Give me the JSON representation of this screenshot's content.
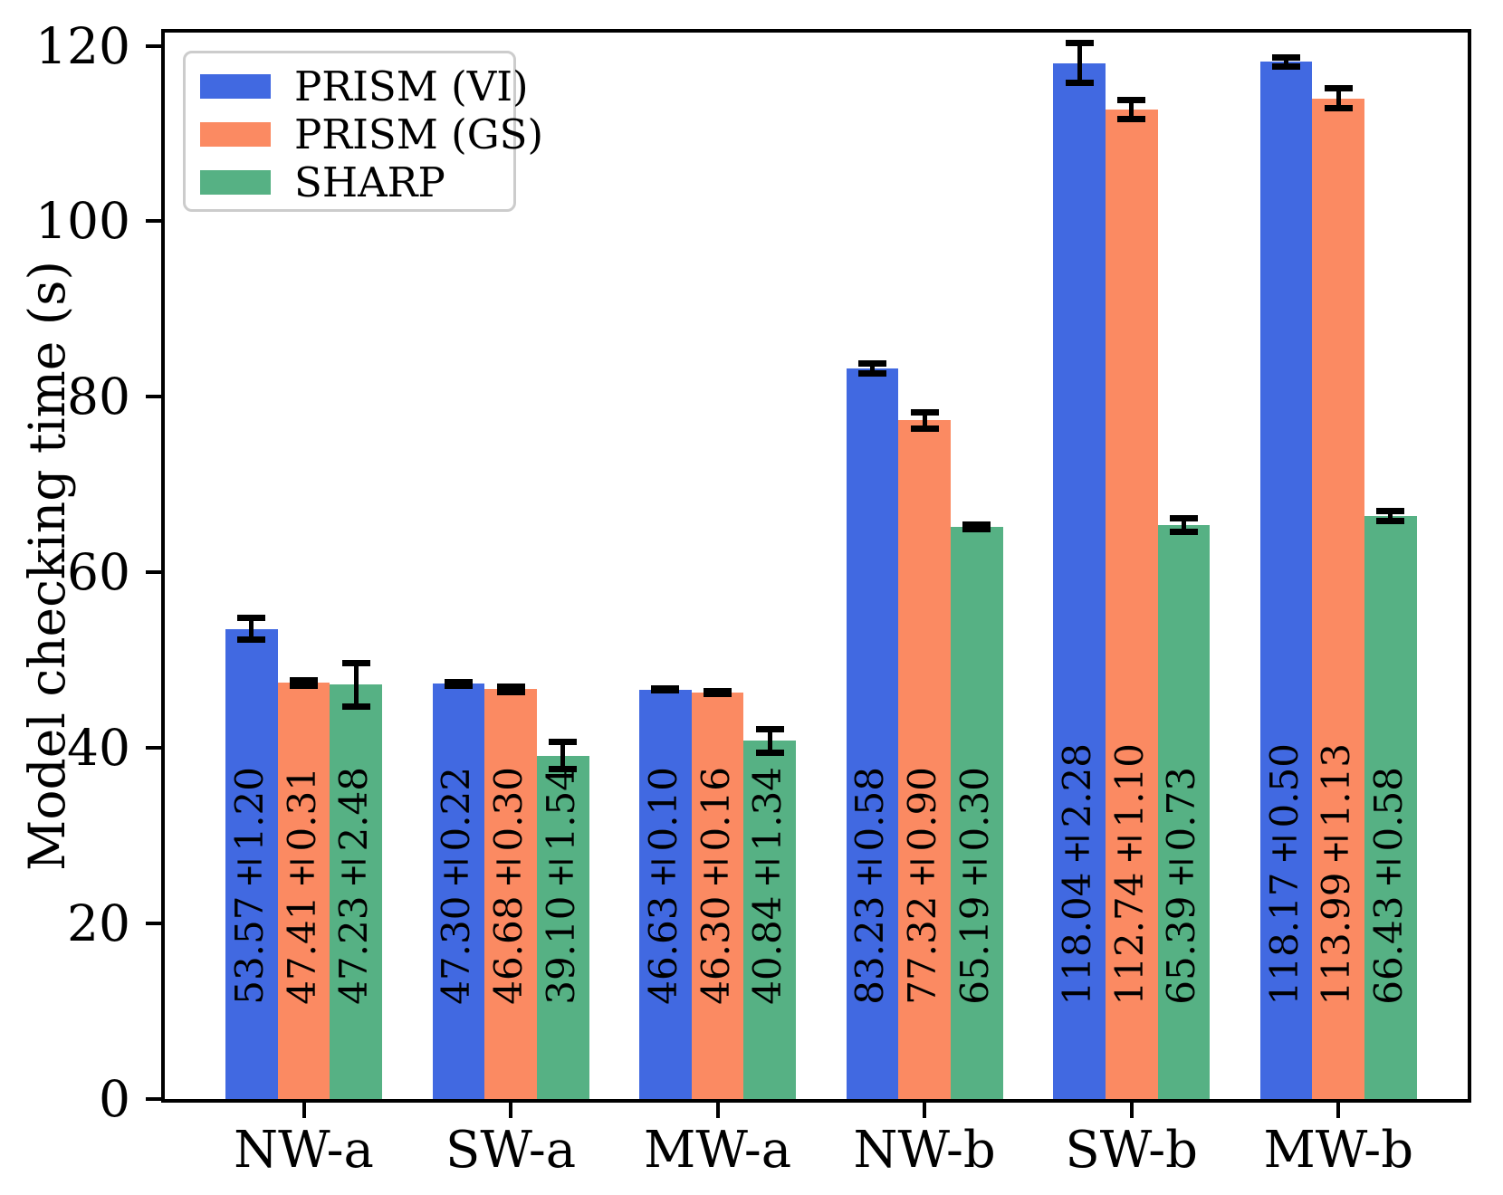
{
  "chart_data": {
    "type": "bar",
    "title": "",
    "xlabel": "",
    "ylabel": "Model checking time (s)",
    "categories": [
      "NW-a",
      "SW-a",
      "MW-a",
      "NW-b",
      "SW-b",
      "MW-b"
    ],
    "series": [
      {
        "name": "PRISM (VI)",
        "color": "#4169e1",
        "values": [
          53.57,
          47.3,
          46.63,
          83.23,
          118.04,
          118.17
        ],
        "errors": [
          1.2,
          0.22,
          0.1,
          0.58,
          2.28,
          0.5
        ],
        "bar_labels": [
          "53.57±1.20",
          "47.30±0.22",
          "46.63±0.10",
          "83.23±0.58",
          "118.04±2.28",
          "118.17±0.50"
        ]
      },
      {
        "name": "PRISM (GS)",
        "color": "#fb8a62",
        "values": [
          47.41,
          46.68,
          46.3,
          77.32,
          112.74,
          113.99
        ],
        "errors": [
          0.31,
          0.3,
          0.16,
          0.9,
          1.1,
          1.13
        ],
        "bar_labels": [
          "47.41±0.31",
          "46.68±0.30",
          "46.30±0.16",
          "77.32±0.90",
          "112.74±1.10",
          "113.99±1.13"
        ]
      },
      {
        "name": "SHARP",
        "color": "#56b184",
        "values": [
          47.23,
          39.1,
          40.84,
          65.19,
          65.39,
          66.43
        ],
        "errors": [
          2.48,
          1.54,
          1.34,
          0.3,
          0.73,
          0.58
        ],
        "bar_labels": [
          "47.23±2.48",
          "39.10±1.54",
          "40.84±1.34",
          "65.19±0.30",
          "65.39±0.73",
          "66.43±0.58"
        ]
      }
    ],
    "yticks": [
      0,
      20,
      40,
      60,
      80,
      100,
      120
    ],
    "ylim": [
      0,
      121.5
    ],
    "grid": false,
    "legend_position": "upper-left",
    "error_bar_color": "#000000"
  }
}
